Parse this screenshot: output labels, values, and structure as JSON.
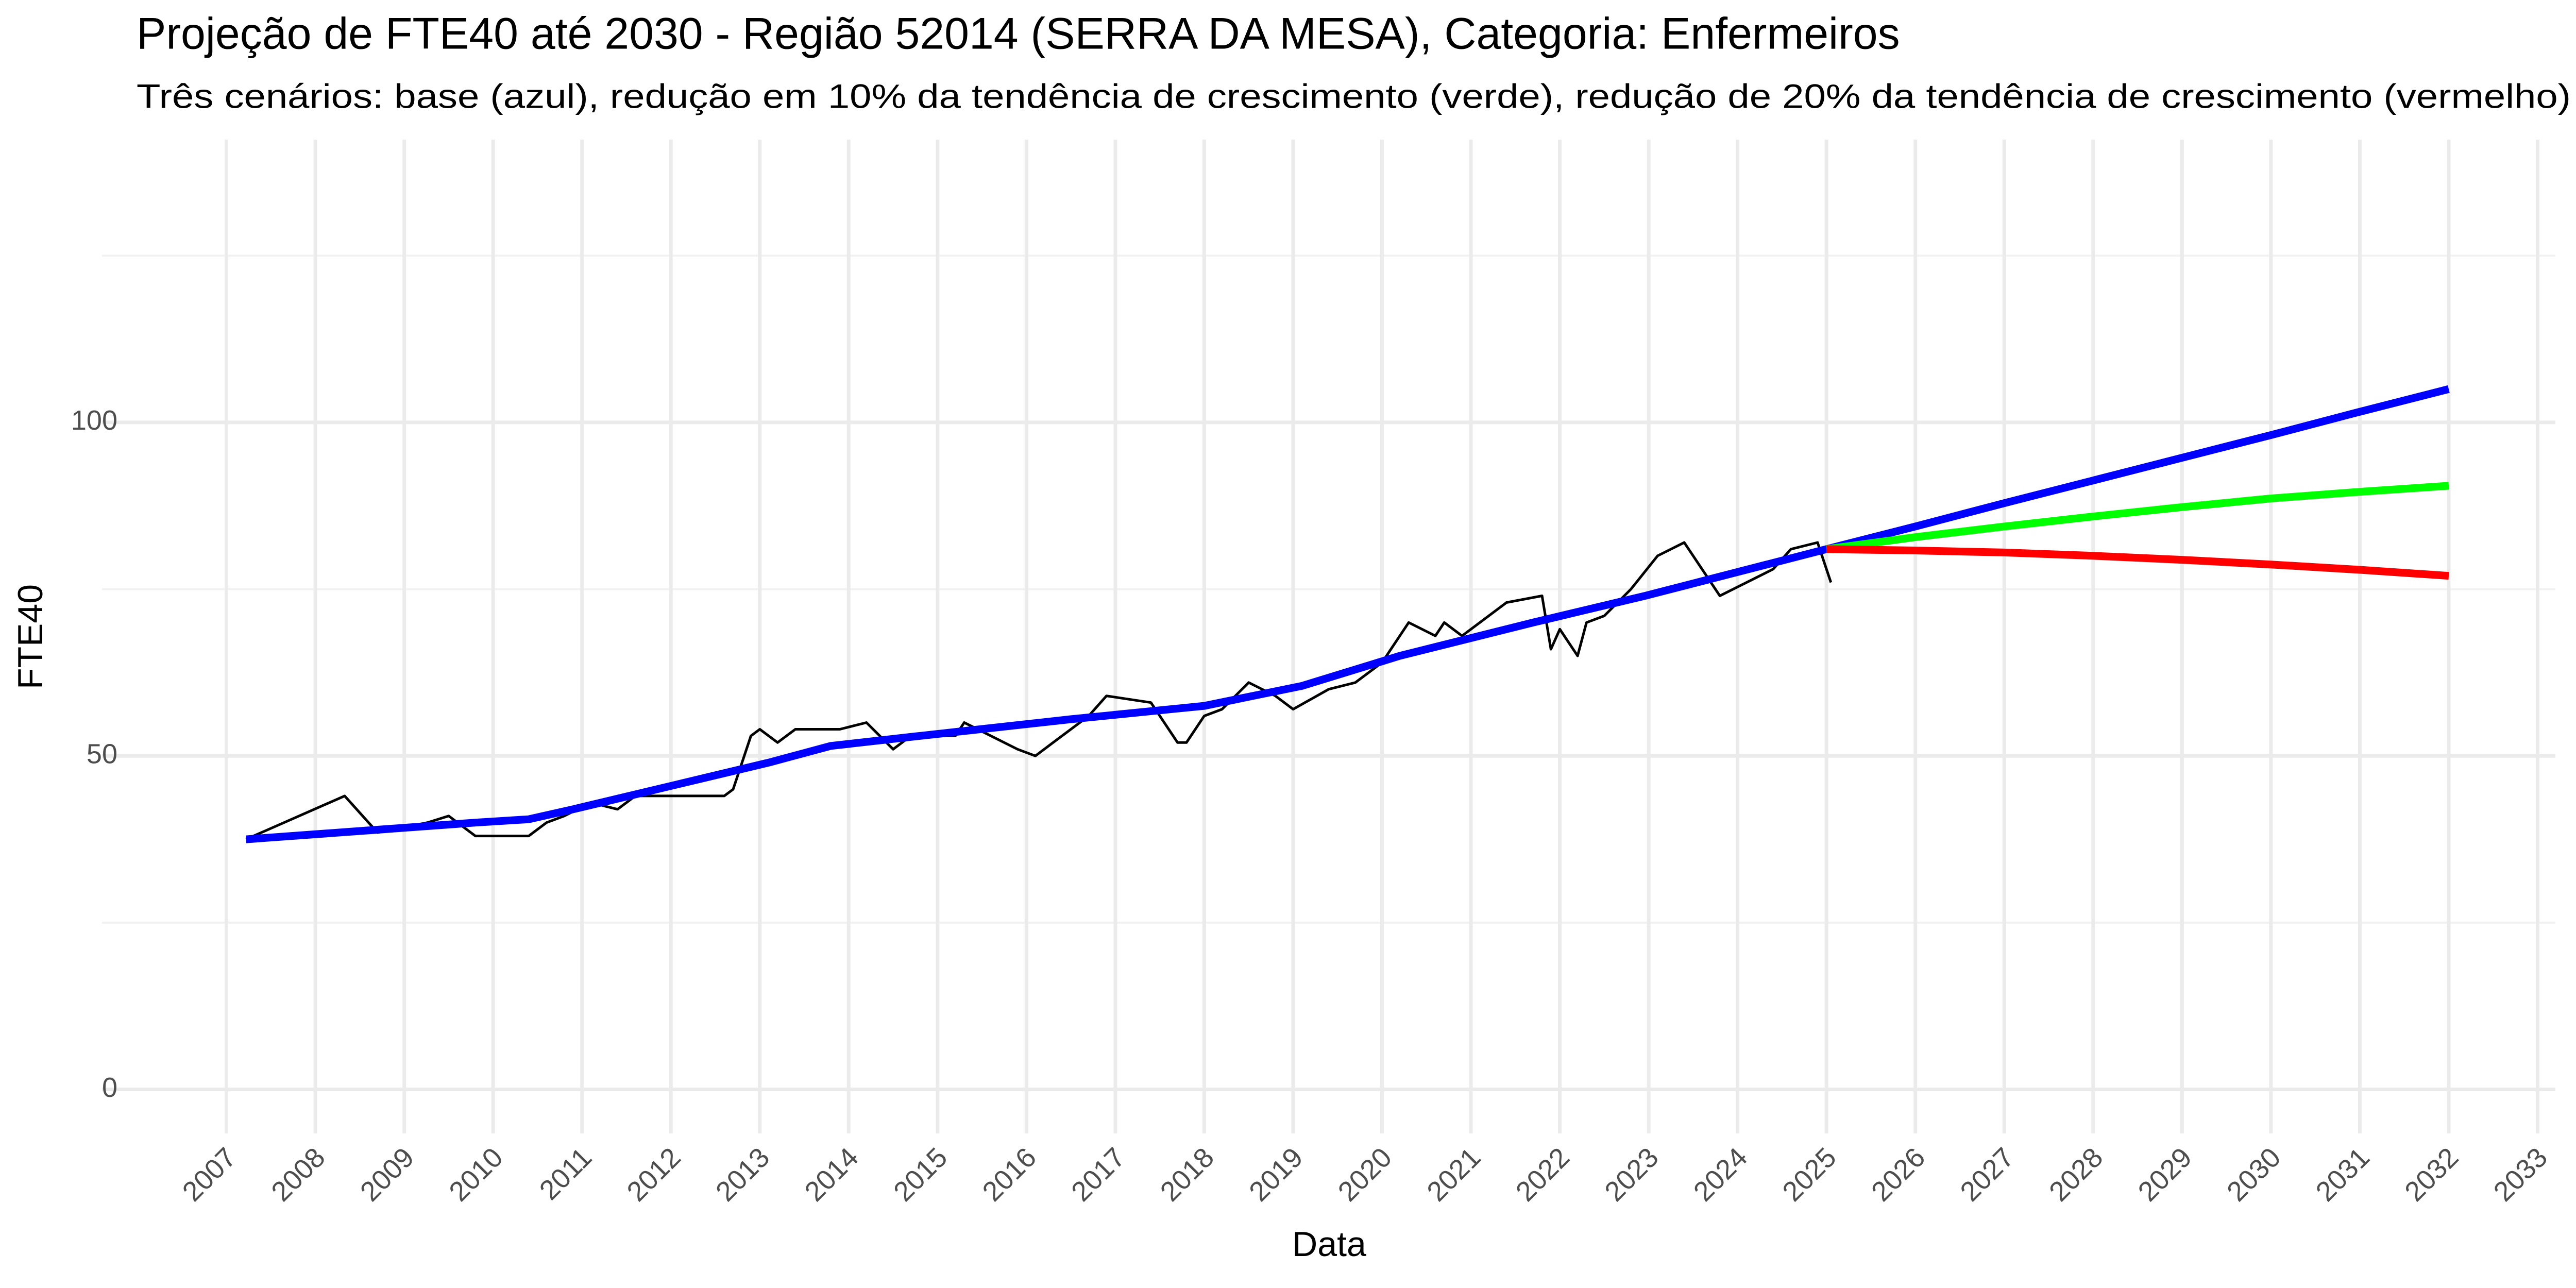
{
  "chart_data": {
    "type": "line",
    "title": "Projeção de FTE40 até 2030 - Região 52014 (SERRA DA MESA), Categoria: Enfermeiros",
    "subtitle": "Três cenários: base (azul), redução em 10% da tendência de crescimento (verde), redução de 20% da tendência de crescimento (vermelho)",
    "xlabel": "Data",
    "ylabel": "FTE40",
    "xlim": [
      2005.6,
      2033.2
    ],
    "xticks": [
      2007,
      2008,
      2009,
      2010,
      2011,
      2012,
      2013,
      2014,
      2015,
      2016,
      2017,
      2018,
      2019,
      2020,
      2021,
      2022,
      2023,
      2024,
      2025,
      2026,
      2027,
      2028,
      2029,
      2030,
      2031,
      2032,
      2033
    ],
    "ylim": [
      -6.6,
      142.4
    ],
    "yticks": [
      0,
      50,
      100
    ],
    "y_minor_ticks": [
      25,
      75,
      125
    ],
    "grid": true,
    "series": [
      {
        "color": "#000000",
        "x": [
          2007.22,
          2008.33,
          2008.7,
          2009.26,
          2009.5,
          2009.8,
          2010.4,
          2010.6,
          2010.8,
          2011.1,
          2011.4,
          2011.6,
          2012.2,
          2012.6,
          2012.7,
          2012.9,
          2013.0,
          2013.2,
          2013.4,
          2013.9,
          2014.2,
          2014.5,
          2014.7,
          2015.2,
          2015.3,
          2015.6,
          2015.9,
          2016.1,
          2016.3,
          2016.7,
          2016.9,
          2017.4,
          2017.7,
          2017.8,
          2018.0,
          2018.2,
          2018.5,
          2018.8,
          2019.0,
          2019.4,
          2019.7,
          2020.0,
          2020.3,
          2020.6,
          2020.7,
          2020.9,
          2021.4,
          2021.8,
          2021.9,
          2022.0,
          2022.2,
          2022.3,
          2022.5,
          2022.8,
          2023.1,
          2023.4,
          2023.8,
          2024.1,
          2024.4,
          2024.6,
          2024.9,
          2025.05
        ],
        "values": [
          37.5,
          44,
          38.5,
          40,
          41,
          38,
          38,
          40,
          41,
          43,
          42,
          44,
          44,
          44,
          45,
          53,
          54,
          52,
          54,
          54,
          55,
          51,
          53,
          53,
          55,
          53,
          51,
          50,
          52,
          56,
          59,
          58,
          52,
          52,
          56,
          57,
          61,
          59,
          57,
          60,
          61,
          64,
          70,
          68,
          70,
          68,
          73,
          74,
          66,
          69,
          65,
          70,
          71,
          75,
          80,
          82,
          74,
          76,
          78,
          81,
          82,
          76
        ]
      },
      {
        "color": "#0000ff",
        "x": [
          2007.22,
          2009.8,
          2010.4,
          2010.9,
          2012.0,
          2013.1,
          2013.8,
          2014.8,
          2016.5,
          2018.0,
          2019.1,
          2020.2,
          2021.7,
          2022.96,
          2025.0,
          2026,
          2027,
          2028,
          2029,
          2030,
          2031,
          2032
        ],
        "values": [
          37.5,
          40,
          40.5,
          42,
          45.5,
          49,
          51.5,
          53,
          55.5,
          57.5,
          60.5,
          65,
          70,
          74,
          81,
          84.4,
          87.9,
          91.3,
          94.7,
          98.1,
          101.6,
          105
        ]
      },
      {
        "color": "#00ff00",
        "x": [
          2025.0,
          2026,
          2027,
          2028,
          2029,
          2030,
          2031,
          2032
        ],
        "values": [
          81,
          82.8,
          84.4,
          85.9,
          87.3,
          88.6,
          89.6,
          90.5
        ]
      },
      {
        "color": "#ff0000",
        "x": [
          2025.0,
          2026,
          2027,
          2028,
          2029,
          2030,
          2031,
          2032
        ],
        "values": [
          81,
          80.8,
          80.5,
          80.0,
          79.4,
          78.7,
          77.9,
          77.0
        ]
      }
    ]
  }
}
